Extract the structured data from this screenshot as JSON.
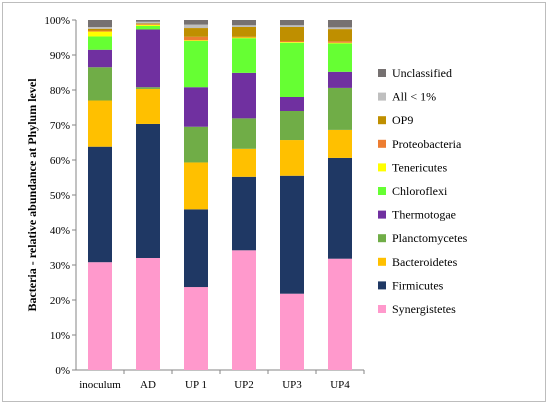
{
  "chart_data": {
    "type": "bar",
    "stacked": true,
    "percent": true,
    "ylabel": "Bacteria - relative abundance at Phylum level",
    "ylim": [
      0,
      100
    ],
    "yticks": [
      "0%",
      "10%",
      "20%",
      "30%",
      "40%",
      "50%",
      "60%",
      "70%",
      "80%",
      "90%",
      "100%"
    ],
    "categories": [
      "inoculum",
      "AD",
      "UP 1",
      "UP2",
      "UP3",
      "UP4"
    ],
    "grid": false,
    "legend_position": "right",
    "series": [
      {
        "name": "Synergistetes",
        "color": "#FF99CC",
        "values": [
          30.8,
          32.0,
          23.7,
          34.2,
          21.8,
          31.8
        ]
      },
      {
        "name": "Firmicutes",
        "color": "#1F3864",
        "values": [
          33.0,
          38.3,
          22.2,
          21.0,
          33.7,
          28.8
        ]
      },
      {
        "name": "Bacteroidetes",
        "color": "#FFC000",
        "values": [
          13.2,
          10.0,
          13.4,
          8.0,
          10.2,
          8.0
        ]
      },
      {
        "name": "Planctomycetes",
        "color": "#70AD47",
        "values": [
          9.5,
          0.5,
          10.2,
          8.7,
          8.3,
          12.0
        ]
      },
      {
        "name": "Thermotogae",
        "color": "#7030A0",
        "values": [
          5.0,
          16.5,
          11.3,
          13.0,
          4.0,
          4.6
        ]
      },
      {
        "name": "Chloroflexi",
        "color": "#66FF33",
        "values": [
          3.8,
          1.0,
          13.2,
          9.9,
          15.5,
          8.1
        ]
      },
      {
        "name": "Tenericutes",
        "color": "#FFFF00",
        "values": [
          1.4,
          0.3,
          0.2,
          0.2,
          0.2,
          0.2
        ]
      },
      {
        "name": "Proteobacteria",
        "color": "#ED7D31",
        "values": [
          0.3,
          0.2,
          1.0,
          0.2,
          0.3,
          0.4
        ]
      },
      {
        "name": "OP9",
        "color": "#BF8F00",
        "values": [
          0.5,
          0.2,
          2.5,
          2.8,
          4.0,
          3.5
        ]
      },
      {
        "name": "All < 1%",
        "color": "#BFBFBF",
        "values": [
          0.5,
          0.5,
          1.0,
          0.5,
          0.5,
          0.5
        ]
      },
      {
        "name": "Unclassified",
        "color": "#767171",
        "values": [
          2.0,
          0.5,
          1.3,
          1.5,
          1.5,
          2.1
        ]
      }
    ]
  }
}
